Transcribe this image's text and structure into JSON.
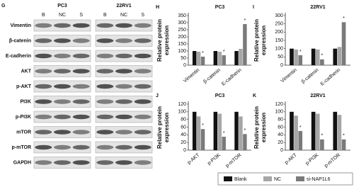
{
  "blot": {
    "panel": "G",
    "groups": [
      {
        "name": "PC3",
        "lanes": [
          "B",
          "NC",
          "S"
        ]
      },
      {
        "name": "22RV1",
        "lanes": [
          "B",
          "NC",
          "S"
        ]
      }
    ],
    "proteins": [
      "Vimentin",
      "β-catenin",
      "E-cadherin",
      "AKT",
      "p-AKT",
      "PI3K",
      "p-PI3K",
      "mTOR",
      "p-mTOR",
      "GAPDH"
    ]
  },
  "legend": [
    {
      "name": "Blank",
      "color": "#111111"
    },
    {
      "name": "NC",
      "color": "#a6a6a6"
    },
    {
      "name": "si-NAP1L6",
      "color": "#7a7a7a"
    }
  ],
  "chart_data": [
    {
      "type": "bar",
      "panel": "H",
      "title": "PC3",
      "y_label": "Relative protein expression",
      "categories": [
        "Vimentin",
        "β-catenin",
        "E-cadherin"
      ],
      "series": [
        {
          "values": [
            100,
            100,
            100
          ]
        },
        {
          "values": [
            95,
            95,
            115
          ]
        },
        {
          "values": [
            60,
            70,
            290
          ],
          "significance": [
            "*",
            "*",
            "*"
          ]
        }
      ],
      "ylim": [
        0,
        350
      ],
      "yticks": [
        0,
        50,
        100,
        150,
        200,
        250,
        300,
        350
      ]
    },
    {
      "type": "bar",
      "panel": "I",
      "title": "22RV1",
      "y_label": "Relative protein expression",
      "categories": [
        "Vimentin",
        "β-catenin",
        "E-cadherin"
      ],
      "series": [
        {
          "values": [
            100,
            100,
            100
          ]
        },
        {
          "values": [
            95,
            95,
            110
          ]
        },
        {
          "values": [
            60,
            35,
            260
          ],
          "significance": [
            "*",
            "*",
            "*"
          ]
        }
      ],
      "ylim": [
        0,
        300
      ],
      "yticks": [
        0,
        50,
        100,
        150,
        200,
        250,
        300
      ]
    },
    {
      "type": "bar",
      "panel": "J",
      "title": "PC3",
      "y_label": "Relative protein expression",
      "categories": [
        "p-AKT",
        "p-PI3K",
        "p-mTOR"
      ],
      "series": [
        {
          "values": [
            100,
            100,
            100
          ]
        },
        {
          "values": [
            88,
            95,
            88
          ]
        },
        {
          "values": [
            55,
            35,
            42
          ],
          "significance": [
            "*",
            "*",
            "*"
          ]
        }
      ],
      "ylim": [
        0,
        120
      ],
      "yticks": [
        0,
        20,
        40,
        60,
        80,
        100,
        120
      ]
    },
    {
      "type": "bar",
      "panel": "K",
      "title": "22RV1",
      "y_label": "Relative protein expression",
      "categories": [
        "p-AKT",
        "p-PI3K",
        "p-mTOR"
      ],
      "series": [
        {
          "values": [
            100,
            100,
            100
          ]
        },
        {
          "values": [
            90,
            95,
            92
          ]
        },
        {
          "values": [
            50,
            28,
            28
          ],
          "significance": [
            "*",
            "*",
            "*"
          ]
        }
      ],
      "ylim": [
        0,
        120
      ],
      "yticks": [
        0,
        20,
        40,
        60,
        80,
        100,
        120
      ]
    }
  ]
}
